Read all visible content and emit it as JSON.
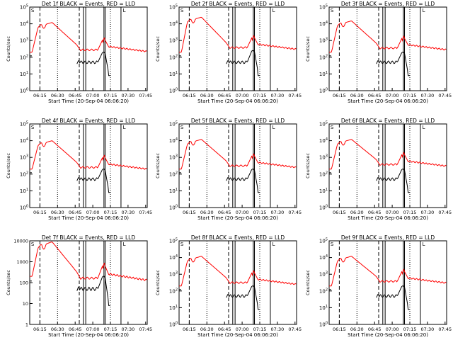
{
  "chart_data": [
    {
      "type": "line",
      "title": "Det 1f BLACK = Events, RED = LLD",
      "ylabel": "Counts/sec",
      "xlabel": "Start Time (20-Sep-04 06:06:20)",
      "yscale": "log",
      "ylim": [
        1,
        100000
      ],
      "ytick_labels": [
        "10^0",
        "10^1",
        "10^2",
        "10^3",
        "10^4",
        "10^5"
      ],
      "xtick_labels": [
        "06:15",
        "06:30",
        "06:45",
        "07:00",
        "07:15",
        "07:30",
        "07:45"
      ],
      "series": [
        {
          "name": "Events",
          "color": "#000000"
        },
        {
          "name": "LLD",
          "color": "#ff0000"
        }
      ],
      "events_peak": 200,
      "lld_peak": 12000,
      "lld_tail": 220
    },
    {
      "type": "line",
      "title": "Det 2f BLACK = Events, RED = LLD",
      "ylabel": "Counts/sec",
      "xlabel": "Start Time (20-Sep-04 06:06:20)",
      "yscale": "log",
      "ylim": [
        1,
        100000
      ],
      "ytick_labels": [
        "10^0",
        "10^1",
        "10^2",
        "10^3",
        "10^4",
        "10^5"
      ],
      "xtick_labels": [
        "06:15",
        "06:30",
        "06:45",
        "07:00",
        "07:15",
        "07:30",
        "07:45"
      ],
      "series": [
        {
          "name": "Events",
          "color": "#000000"
        },
        {
          "name": "LLD",
          "color": "#ff0000"
        }
      ],
      "events_peak": 250,
      "lld_peak": 25000,
      "lld_tail": 300
    },
    {
      "type": "line",
      "title": "Det 3f BLACK = Events, RED = LLD",
      "ylabel": "Counts/sec",
      "xlabel": "Start Time (20-Sep-04 06:06:20)",
      "yscale": "log",
      "ylim": [
        1,
        100000
      ],
      "ytick_labels": [
        "10^0",
        "10^1",
        "10^2",
        "10^3",
        "10^4",
        "10^5"
      ],
      "xtick_labels": [
        "06:15",
        "06:30",
        "06:45",
        "07:00",
        "07:15",
        "07:30",
        "07:45"
      ],
      "series": [
        {
          "name": "Events",
          "color": "#000000"
        },
        {
          "name": "LLD",
          "color": "#ff0000"
        }
      ],
      "events_peak": 200,
      "lld_peak": 15000,
      "lld_tail": 280
    },
    {
      "type": "line",
      "title": "Det 4f BLACK = Events, RED = LLD",
      "ylabel": "Counts/sec",
      "xlabel": "Start Time (20-Sep-04 06:06:20)",
      "yscale": "log",
      "ylim": [
        1,
        100000
      ],
      "ytick_labels": [
        "10^0",
        "10^1",
        "10^2",
        "10^3",
        "10^4",
        "10^5"
      ],
      "xtick_labels": [
        "06:15",
        "06:30",
        "06:45",
        "07:00",
        "07:15",
        "07:30",
        "07:45"
      ],
      "series": [
        {
          "name": "Events",
          "color": "#000000"
        },
        {
          "name": "LLD",
          "color": "#ff0000"
        }
      ],
      "events_peak": 200,
      "lld_peak": 10000,
      "lld_tail": 200
    },
    {
      "type": "line",
      "title": "Det 5f BLACK = Events, RED = LLD",
      "ylabel": "Counts/sec",
      "xlabel": "Start Time (20-Sep-04 06:06:20)",
      "yscale": "log",
      "ylim": [
        1,
        100000
      ],
      "ytick_labels": [
        "10^0",
        "10^1",
        "10^2",
        "10^3",
        "10^4",
        "10^5"
      ],
      "xtick_labels": [
        "06:15",
        "06:30",
        "06:45",
        "07:00",
        "07:15",
        "07:30",
        "07:45"
      ],
      "series": [
        {
          "name": "Events",
          "color": "#000000"
        },
        {
          "name": "LLD",
          "color": "#ff0000"
        }
      ],
      "events_peak": 200,
      "lld_peak": 12000,
      "lld_tail": 250
    },
    {
      "type": "line",
      "title": "Det 6f BLACK = Events, RED = LLD",
      "ylabel": "Counts/sec",
      "xlabel": "Start Time (20-Sep-04 06:06:20)",
      "yscale": "log",
      "ylim": [
        1,
        100000
      ],
      "ytick_labels": [
        "10^0",
        "10^1",
        "10^2",
        "10^3",
        "10^4",
        "10^5"
      ],
      "xtick_labels": [
        "06:15",
        "06:30",
        "06:45",
        "07:00",
        "07:15",
        "07:30",
        "07:45"
      ],
      "series": [
        {
          "name": "Events",
          "color": "#000000"
        },
        {
          "name": "LLD",
          "color": "#ff0000"
        }
      ],
      "events_peak": 200,
      "lld_peak": 12000,
      "lld_tail": 300
    },
    {
      "type": "line",
      "title": "Det 7f BLACK = Events, RED = LLD",
      "ylabel": "Counts/sec",
      "xlabel": "Start Time (20-Sep-04 06:06:20)",
      "yscale": "log",
      "ylim": [
        1,
        10000
      ],
      "ytick_labels": [
        "1",
        "10",
        "100",
        "1000",
        "10000"
      ],
      "xtick_labels": [
        "06:15",
        "06:30",
        "06:45",
        "07:00",
        "07:15",
        "07:30",
        "07:45"
      ],
      "series": [
        {
          "name": "Events",
          "color": "#000000"
        },
        {
          "name": "LLD",
          "color": "#ff0000"
        }
      ],
      "events_peak": 200,
      "lld_peak": 9000,
      "lld_tail": 130
    },
    {
      "type": "line",
      "title": "Det 8f BLACK = Events, RED = LLD",
      "ylabel": "Counts/sec",
      "xlabel": "Start Time (20-Sep-04 06:06:20)",
      "yscale": "log",
      "ylim": [
        1,
        100000
      ],
      "ytick_labels": [
        "10^0",
        "10^1",
        "10^2",
        "10^3",
        "10^4",
        "10^5"
      ],
      "xtick_labels": [
        "06:15",
        "06:30",
        "06:45",
        "07:00",
        "07:15",
        "07:30",
        "07:45"
      ],
      "series": [
        {
          "name": "Events",
          "color": "#000000"
        },
        {
          "name": "LLD",
          "color": "#ff0000"
        }
      ],
      "events_peak": 200,
      "lld_peak": 12000,
      "lld_tail": 250
    },
    {
      "type": "line",
      "title": "Det 9f BLACK = Events, RED = LLD",
      "ylabel": "Counts/sec",
      "xlabel": "Start Time (20-Sep-04 06:06:20)",
      "yscale": "log",
      "ylim": [
        1,
        100000
      ],
      "ytick_labels": [
        "10^0",
        "10^1",
        "10^2",
        "10^3",
        "10^4",
        "10^5"
      ],
      "xtick_labels": [
        "06:15",
        "06:30",
        "06:45",
        "07:00",
        "07:15",
        "07:30",
        "07:45"
      ],
      "series": [
        {
          "name": "Events",
          "color": "#000000"
        },
        {
          "name": "LLD",
          "color": "#ff0000"
        }
      ],
      "events_peak": 200,
      "lld_peak": 12000,
      "lld_tail": 300
    }
  ],
  "markers": {
    "dashed_minutes": [
      8.67,
      42.17
    ],
    "dotted_minutes": [
      23.67,
      68.67
    ],
    "solid_minutes": [
      45.67,
      47.67,
      63.17,
      64.17,
      77.67
    ],
    "top_label_s": "S",
    "top_label_l": "L"
  }
}
